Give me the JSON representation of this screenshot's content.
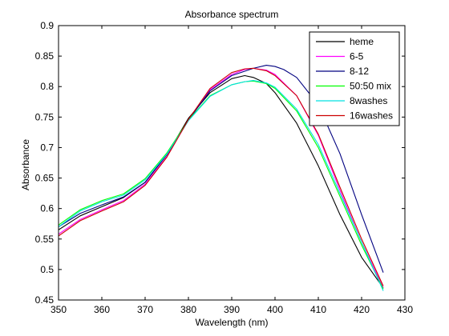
{
  "chart_data": {
    "type": "line",
    "title": "Absorbance spectrum",
    "xlabel": "Wavelength (nm)",
    "ylabel": "Absorbance",
    "xlim": [
      350,
      430
    ],
    "ylim": [
      0.45,
      0.9
    ],
    "xticks": [
      "350",
      "360",
      "370",
      "380",
      "390",
      "400",
      "410",
      "420",
      "430"
    ],
    "yticks": [
      "0.45",
      "0.5",
      "0.55",
      "0.6",
      "0.65",
      "0.7",
      "0.75",
      "0.8",
      "0.85",
      "0.9"
    ],
    "grid": false,
    "legend_position": "top-right",
    "series": [
      {
        "name": "heme",
        "color": "#000000",
        "x": [
          350,
          355,
          360,
          365,
          370,
          375,
          380,
          385,
          390,
          393,
          395,
          398,
          400,
          405,
          410,
          415,
          420,
          425
        ],
        "y": [
          0.565,
          0.588,
          0.603,
          0.618,
          0.643,
          0.688,
          0.748,
          0.79,
          0.813,
          0.818,
          0.815,
          0.805,
          0.79,
          0.74,
          0.67,
          0.59,
          0.52,
          0.47
        ]
      },
      {
        "name": "6-5",
        "color": "#ff00ff",
        "x": [
          350,
          355,
          360,
          365,
          370,
          375,
          380,
          385,
          390,
          393,
          395,
          398,
          400,
          405,
          410,
          415,
          420,
          425
        ],
        "y": [
          0.558,
          0.582,
          0.598,
          0.613,
          0.64,
          0.685,
          0.745,
          0.795,
          0.82,
          0.828,
          0.83,
          0.827,
          0.82,
          0.785,
          0.72,
          0.63,
          0.545,
          0.47
        ]
      },
      {
        "name": "8-12",
        "color": "#000080",
        "x": [
          350,
          355,
          360,
          365,
          370,
          375,
          380,
          385,
          390,
          395,
          398,
          400,
          402,
          405,
          410,
          415,
          420,
          425
        ],
        "y": [
          0.57,
          0.592,
          0.606,
          0.619,
          0.643,
          0.688,
          0.745,
          0.793,
          0.818,
          0.83,
          0.835,
          0.833,
          0.828,
          0.815,
          0.77,
          0.69,
          0.59,
          0.495
        ]
      },
      {
        "name": "50:50 mix",
        "color": "#00ff00",
        "x": [
          350,
          355,
          360,
          365,
          370,
          375,
          380,
          385,
          390,
          393,
          395,
          398,
          400,
          405,
          410,
          415,
          420,
          425
        ],
        "y": [
          0.573,
          0.598,
          0.613,
          0.624,
          0.649,
          0.691,
          0.745,
          0.785,
          0.803,
          0.808,
          0.809,
          0.805,
          0.797,
          0.76,
          0.7,
          0.62,
          0.54,
          0.468
        ]
      },
      {
        "name": "8washes",
        "color": "#00e0e0",
        "x": [
          350,
          355,
          360,
          365,
          370,
          375,
          380,
          385,
          390,
          393,
          395,
          398,
          400,
          405,
          410,
          415,
          420,
          425
        ],
        "y": [
          0.57,
          0.596,
          0.611,
          0.622,
          0.647,
          0.689,
          0.744,
          0.784,
          0.803,
          0.808,
          0.81,
          0.806,
          0.799,
          0.763,
          0.705,
          0.625,
          0.545,
          0.465
        ]
      },
      {
        "name": "16washes",
        "color": "#cc0000",
        "x": [
          350,
          355,
          360,
          365,
          370,
          375,
          380,
          385,
          390,
          393,
          395,
          398,
          400,
          405,
          410,
          415,
          420,
          425
        ],
        "y": [
          0.555,
          0.58,
          0.596,
          0.611,
          0.638,
          0.684,
          0.746,
          0.797,
          0.823,
          0.829,
          0.83,
          0.826,
          0.818,
          0.785,
          0.722,
          0.635,
          0.55,
          0.473
        ]
      }
    ]
  }
}
